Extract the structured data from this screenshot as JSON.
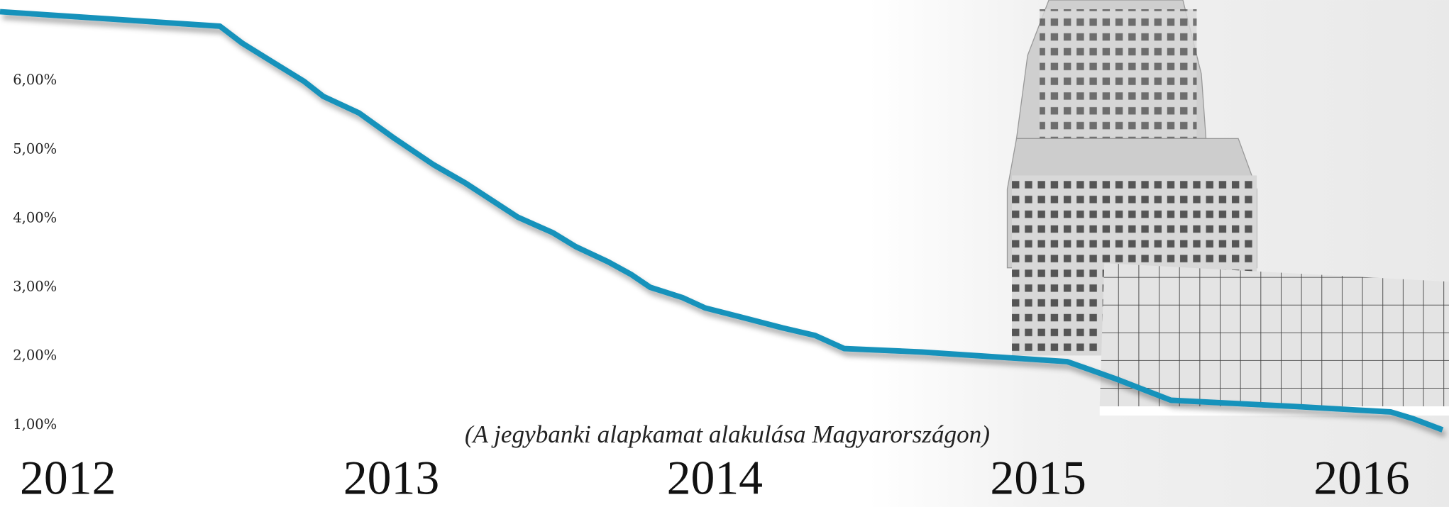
{
  "chart_data": {
    "type": "line",
    "title": "(A jegybanki alapkamat alakulása Magyarországon)",
    "x": [
      2011.79,
      2012.47,
      2012.54,
      2012.64,
      2012.73,
      2012.79,
      2012.9,
      2013.01,
      2013.13,
      2013.23,
      2013.39,
      2013.5,
      2013.57,
      2013.67,
      2013.74,
      2013.8,
      2013.9,
      2013.97,
      2014.07,
      2014.21,
      2014.31,
      2014.4,
      2014.64,
      2015.09,
      2015.24,
      2015.41,
      2015.79,
      2016.09,
      2016.16,
      2016.25
    ],
    "series": [
      {
        "color": "#1592bb",
        "values": [
          7.0,
          6.79,
          6.54,
          6.25,
          5.99,
          5.77,
          5.53,
          5.16,
          4.78,
          4.51,
          4.02,
          3.79,
          3.59,
          3.37,
          3.19,
          3.0,
          2.85,
          2.7,
          2.58,
          2.41,
          2.3,
          2.11,
          2.06,
          1.92,
          1.67,
          1.36,
          1.27,
          1.19,
          1.09,
          0.93
        ]
      }
    ],
    "xlim": [
      2011.79,
      2016.27
    ],
    "xticks": [
      2012,
      2013,
      2014,
      2015,
      2016
    ],
    "ylim": [
      -0.19,
      7.17
    ],
    "yticks": [
      {
        "value": 1,
        "label": "1,00%"
      },
      {
        "value": 2,
        "label": "2,00%"
      },
      {
        "value": 3,
        "label": "3,00%"
      },
      {
        "value": 4,
        "label": "4,00%"
      },
      {
        "value": 5,
        "label": "5,00%"
      },
      {
        "value": 6,
        "label": "6,00%"
      }
    ]
  }
}
